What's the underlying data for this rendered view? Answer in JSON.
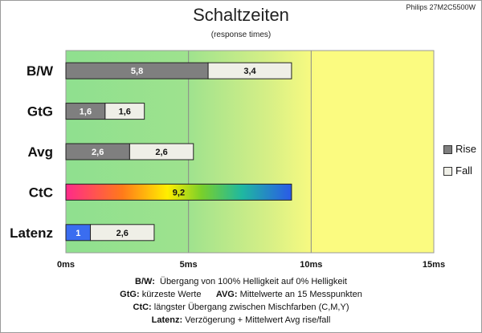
{
  "header": {
    "title": "Schaltzeiten",
    "subtitle": "(response times)",
    "model": "Philips 27M2C5500W"
  },
  "legend": {
    "rise_label": "Rise",
    "fall_label": "Fall"
  },
  "notes": {
    "bw_key": "B/W:",
    "bw_text": "Übergang von 100% Helligkeit auf 0% Helligkeit",
    "gtg_key": "GtG:",
    "gtg_text": "kürzeste Werte",
    "avg_key": "AVG:",
    "avg_text": "Mittelwerte an 15 Messpunkten",
    "ctc_key": "CtC:",
    "ctc_text": "längster Übergang zwischen Mischfarben (C,M,Y)",
    "lat_key": "Latenz:",
    "lat_text": "Verzögerung + Mittelwert Avg rise/fall"
  },
  "colors": {
    "rise": "#7f7f7f",
    "fall": "#efefe7",
    "latency": "#3a6df0",
    "plot_green": "#8fe08f",
    "plot_yellow": "#fbfb80"
  },
  "chart_data": {
    "type": "bar",
    "orientation": "horizontal",
    "stacked": true,
    "title": "Schaltzeiten",
    "subtitle": "(response times)",
    "categories": [
      "B/W",
      "GtG",
      "Avg",
      "CtC",
      "Latenz"
    ],
    "series": [
      {
        "name": "Rise",
        "values": [
          5.8,
          1.6,
          2.6,
          null,
          1
        ]
      },
      {
        "name": "Fall",
        "values": [
          3.4,
          1.6,
          2.6,
          null,
          2.6
        ]
      }
    ],
    "ctc_value": 9.2,
    "value_labels": {
      "rise": [
        "5,8",
        "1,6",
        "2,6",
        "",
        "1"
      ],
      "fall": [
        "3,4",
        "1,6",
        "2,6",
        "",
        "2,6"
      ],
      "ctc": "9,2"
    },
    "xticks": [
      {
        "value": 0,
        "label": "0ms"
      },
      {
        "value": 5,
        "label": "5ms"
      },
      {
        "value": 10,
        "label": "10ms"
      },
      {
        "value": 15,
        "label": "15ms"
      }
    ],
    "xlim": [
      0,
      15
    ],
    "grid": true,
    "legend_position": "right"
  }
}
